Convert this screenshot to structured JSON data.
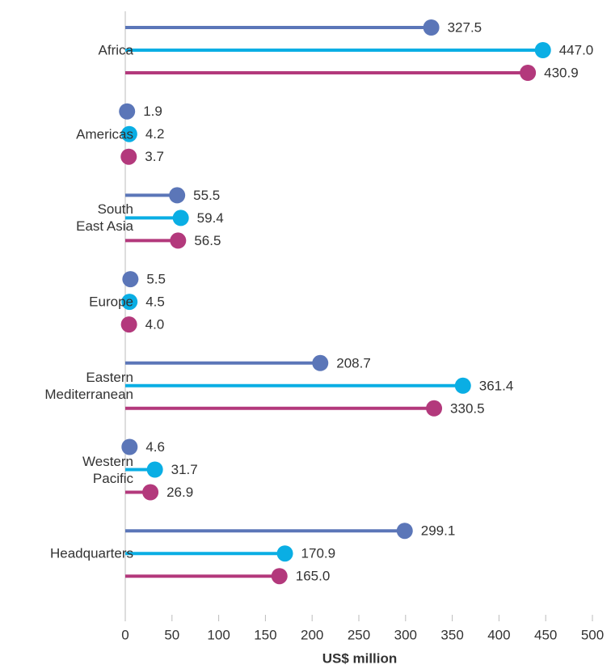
{
  "chart_data": {
    "type": "lollipop",
    "orientation": "horizontal",
    "categories": [
      "Africa",
      "Americas",
      "South\nEast Asia",
      "Europe",
      "Eastern\nMediterranean",
      "Western\nPacific",
      "Headquarters"
    ],
    "series": [
      {
        "color": "#5b76b8",
        "values": [
          327.5,
          1.9,
          55.5,
          5.5,
          208.7,
          4.6,
          299.1
        ],
        "value_labels": [
          "327.5",
          "1.9",
          "55.5",
          "5.5",
          "208.7",
          "4.6",
          "299.1"
        ]
      },
      {
        "color": "#0aaee4",
        "values": [
          447.0,
          4.2,
          59.4,
          4.5,
          361.4,
          31.7,
          170.9
        ],
        "value_labels": [
          "447.0",
          "4.2",
          "59.4",
          "4.5",
          "361.4",
          "31.7",
          "170.9"
        ]
      },
      {
        "color": "#b3397c",
        "values": [
          430.9,
          3.7,
          56.5,
          4.0,
          330.5,
          26.9,
          165.0
        ],
        "value_labels": [
          "430.9",
          "3.7",
          "56.5",
          "4.0",
          "330.5",
          "26.9",
          "165.0"
        ]
      }
    ],
    "xlabel": "US$ million",
    "xlim": [
      0,
      500
    ],
    "xticks": [
      0,
      50,
      100,
      150,
      200,
      250,
      300,
      350,
      400,
      450,
      500
    ]
  }
}
